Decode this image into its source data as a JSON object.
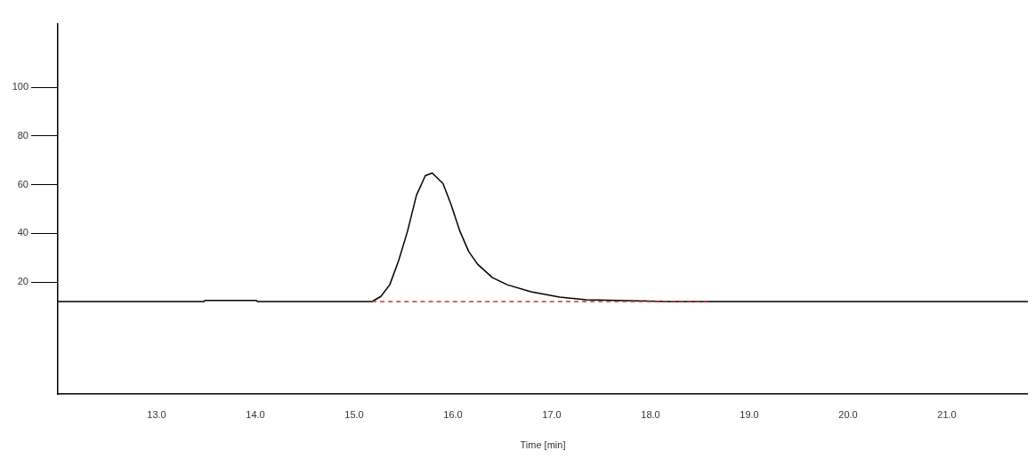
{
  "chart_data": {
    "type": "line",
    "xlabel": "Time [min]",
    "xlim": [
      12.0,
      21.82
    ],
    "ylim": [
      -26,
      126
    ],
    "xticks": [
      {
        "value": 13,
        "label": "13.0"
      },
      {
        "value": 14,
        "label": "14.0"
      },
      {
        "value": 15,
        "label": "15.0"
      },
      {
        "value": 16,
        "label": "16.0"
      },
      {
        "value": 17,
        "label": "17.0"
      },
      {
        "value": 18,
        "label": "18.0"
      },
      {
        "value": 19,
        "label": "19.0"
      },
      {
        "value": 20,
        "label": "20.0"
      },
      {
        "value": 21,
        "label": "21.0"
      }
    ],
    "yticks": [
      20,
      40,
      60,
      80,
      100
    ],
    "grid": false,
    "legend": false,
    "marker": "none",
    "series": [
      {
        "type": "line",
        "color": "#000000",
        "line_style": "solid",
        "x": [
          12.0,
          13.48,
          13.49,
          14.01,
          14.02,
          15.18,
          15.27,
          15.36,
          15.45,
          15.54,
          15.63,
          15.72,
          15.79,
          15.9,
          15.98,
          16.07,
          16.16,
          16.25,
          16.4,
          16.55,
          16.79,
          17.08,
          17.35,
          17.89,
          18.2,
          21.82
        ],
        "values": [
          12,
          12,
          12.5,
          12.5,
          12,
          12,
          14.1,
          18.9,
          28.8,
          40.9,
          55.6,
          63.7,
          64.8,
          60.4,
          51.9,
          40.9,
          32.5,
          27.3,
          21.8,
          18.9,
          16,
          13.8,
          12.7,
          12.3,
          12,
          12
        ]
      },
      {
        "type": "line",
        "color": "#cc3333",
        "line_style": "dashed",
        "x": [
          15.18,
          18.58
        ],
        "values": [
          12,
          12
        ]
      }
    ]
  }
}
